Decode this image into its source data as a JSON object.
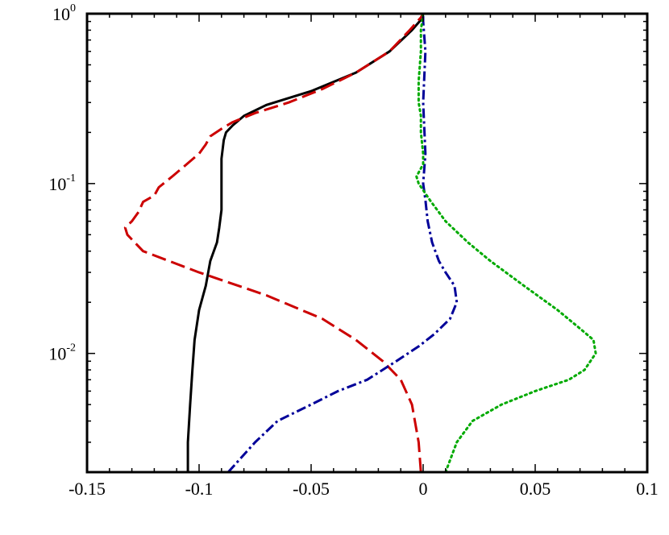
{
  "chart_data": {
    "type": "line",
    "title": "",
    "xlabel": "",
    "ylabel": "",
    "xlim": [
      -0.15,
      0.1
    ],
    "ylim": [
      0.002,
      1
    ],
    "yscale": "log",
    "grid": false,
    "x_ticks": [
      {
        "value": -0.15,
        "label": "-0.15"
      },
      {
        "value": -0.1,
        "label": "-0.1"
      },
      {
        "value": -0.05,
        "label": "-0.05"
      },
      {
        "value": 0,
        "label": "0"
      },
      {
        "value": 0.05,
        "label": "0.05"
      },
      {
        "value": 0.1,
        "label": "0.1"
      }
    ],
    "y_ticks": [
      {
        "value": 1,
        "base": "10",
        "exp": "0"
      },
      {
        "value": 0.1,
        "base": "10",
        "exp": "-1"
      },
      {
        "value": 0.01,
        "base": "10",
        "exp": "-2"
      }
    ],
    "series": [
      {
        "color": "#000000",
        "dash": "solid",
        "points": [
          [
            -0.105,
            0.002
          ],
          [
            -0.105,
            0.003
          ],
          [
            -0.104,
            0.005
          ],
          [
            -0.103,
            0.008
          ],
          [
            -0.102,
            0.012
          ],
          [
            -0.1,
            0.018
          ],
          [
            -0.097,
            0.025
          ],
          [
            -0.095,
            0.035
          ],
          [
            -0.092,
            0.045
          ],
          [
            -0.091,
            0.055
          ],
          [
            -0.09,
            0.07
          ],
          [
            -0.09,
            0.1
          ],
          [
            -0.09,
            0.14
          ],
          [
            -0.089,
            0.18
          ],
          [
            -0.088,
            0.2
          ],
          [
            -0.085,
            0.22
          ],
          [
            -0.08,
            0.25
          ],
          [
            -0.07,
            0.29
          ],
          [
            -0.05,
            0.35
          ],
          [
            -0.03,
            0.45
          ],
          [
            -0.015,
            0.6
          ],
          [
            -0.005,
            0.8
          ],
          [
            -0.001,
            0.92
          ],
          [
            0.0,
            1.0
          ]
        ]
      },
      {
        "color": "#cc0000",
        "dash": "dashed",
        "points": [
          [
            -0.001,
            0.002
          ],
          [
            -0.002,
            0.003
          ],
          [
            -0.005,
            0.005
          ],
          [
            -0.01,
            0.007
          ],
          [
            -0.018,
            0.009
          ],
          [
            -0.03,
            0.012
          ],
          [
            -0.045,
            0.016
          ],
          [
            -0.07,
            0.022
          ],
          [
            -0.1,
            0.03
          ],
          [
            -0.125,
            0.04
          ],
          [
            -0.132,
            0.05
          ],
          [
            -0.133,
            0.055
          ],
          [
            -0.13,
            0.06
          ],
          [
            -0.127,
            0.068
          ],
          [
            -0.125,
            0.078
          ],
          [
            -0.12,
            0.085
          ],
          [
            -0.118,
            0.095
          ],
          [
            -0.112,
            0.11
          ],
          [
            -0.108,
            0.122
          ],
          [
            -0.1,
            0.15
          ],
          [
            -0.097,
            0.17
          ],
          [
            -0.095,
            0.19
          ],
          [
            -0.09,
            0.21
          ],
          [
            -0.085,
            0.23
          ],
          [
            -0.075,
            0.26
          ],
          [
            -0.06,
            0.3
          ],
          [
            -0.045,
            0.36
          ],
          [
            -0.03,
            0.45
          ],
          [
            -0.015,
            0.6
          ],
          [
            -0.006,
            0.8
          ],
          [
            -0.001,
            0.95
          ],
          [
            0.0,
            1.0
          ]
        ]
      },
      {
        "color": "#000099",
        "dash": "dashdot",
        "points": [
          [
            -0.087,
            0.002
          ],
          [
            -0.075,
            0.003
          ],
          [
            -0.065,
            0.004
          ],
          [
            -0.05,
            0.005
          ],
          [
            -0.038,
            0.006
          ],
          [
            -0.025,
            0.007
          ],
          [
            -0.012,
            0.009
          ],
          [
            -0.002,
            0.011
          ],
          [
            0.005,
            0.013
          ],
          [
            0.012,
            0.016
          ],
          [
            0.015,
            0.02
          ],
          [
            0.014,
            0.025
          ],
          [
            0.01,
            0.03
          ],
          [
            0.007,
            0.035
          ],
          [
            0.004,
            0.045
          ],
          [
            0.002,
            0.06
          ],
          [
            0.001,
            0.08
          ],
          [
            0.0,
            0.1
          ],
          [
            0.001,
            0.15
          ],
          [
            0.0,
            0.3
          ],
          [
            0.001,
            0.6
          ],
          [
            0.0,
            0.9
          ],
          [
            0.0,
            1.0
          ]
        ]
      },
      {
        "color": "#00aa00",
        "dash": "dotted",
        "points": [
          [
            0.01,
            0.002
          ],
          [
            0.015,
            0.003
          ],
          [
            0.022,
            0.004
          ],
          [
            0.035,
            0.005
          ],
          [
            0.05,
            0.006
          ],
          [
            0.065,
            0.007
          ],
          [
            0.072,
            0.008
          ],
          [
            0.077,
            0.01
          ],
          [
            0.076,
            0.012
          ],
          [
            0.07,
            0.014
          ],
          [
            0.06,
            0.018
          ],
          [
            0.045,
            0.025
          ],
          [
            0.03,
            0.035
          ],
          [
            0.02,
            0.045
          ],
          [
            0.01,
            0.06
          ],
          [
            0.003,
            0.08
          ],
          [
            -0.002,
            0.1
          ],
          [
            -0.003,
            0.11
          ],
          [
            0.0,
            0.13
          ],
          [
            0.0,
            0.15
          ],
          [
            -0.001,
            0.2
          ],
          [
            -0.001,
            0.25
          ],
          [
            -0.002,
            0.3
          ],
          [
            -0.002,
            0.4
          ],
          [
            -0.001,
            0.6
          ],
          [
            -0.001,
            0.8
          ],
          [
            0.0,
            1.0
          ]
        ]
      }
    ]
  }
}
